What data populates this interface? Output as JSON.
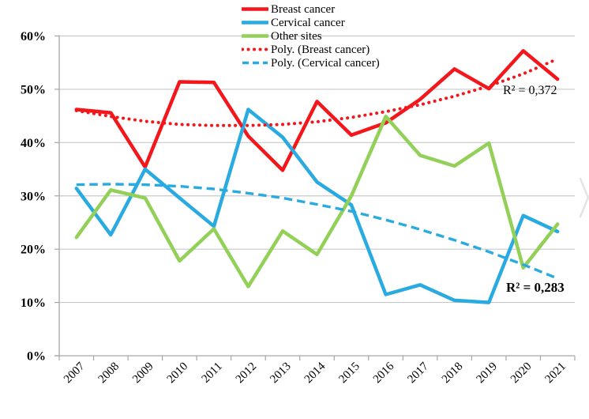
{
  "page": {
    "background": "#FFFFFF"
  },
  "chart_data": {
    "type": "line",
    "title": "",
    "x_categories": [
      "2007",
      "2008",
      "2009",
      "2010",
      "2011",
      "2012",
      "2013",
      "2014",
      "2015",
      "2016",
      "2017",
      "2018",
      "2019",
      "2020",
      "2021"
    ],
    "y_axis": {
      "min": 0,
      "max": 60,
      "step": 10,
      "format": "percent",
      "labels": [
        "0%",
        "10%",
        "20%",
        "30%",
        "40%",
        "50%",
        "60%"
      ]
    },
    "x_axis": {
      "label_rotation_deg": -45
    },
    "grid": {
      "horizontal": true,
      "vertical": false
    },
    "legend_position": "top-center",
    "series": [
      {
        "name": "Breast cancer",
        "color": "#F3161B",
        "line_style": "solid",
        "trendline": false,
        "values": [
          46.2,
          45.6,
          35.4,
          51.4,
          51.3,
          41.2,
          34.8,
          47.7,
          41.4,
          43.7,
          48.1,
          53.8,
          50.1,
          57.2,
          51.9
        ]
      },
      {
        "name": "Cervical cancer",
        "color": "#29ABE2",
        "line_style": "solid",
        "trendline": false,
        "values": [
          31.4,
          22.7,
          35.0,
          29.6,
          24.3,
          46.2,
          41.0,
          32.6,
          28.3,
          11.5,
          13.3,
          10.4,
          10.0,
          26.3,
          23.3
        ]
      },
      {
        "name": "Other sites",
        "color": "#92D058",
        "line_style": "solid",
        "trendline": false,
        "values": [
          22.2,
          31.1,
          29.6,
          17.8,
          23.8,
          13.0,
          23.4,
          19.0,
          30.0,
          44.9,
          37.6,
          35.6,
          39.9,
          16.5,
          24.7
        ]
      },
      {
        "name": "Poly. (Breast cancer)",
        "color": "#F3161B",
        "line_style": "dotted",
        "trendline": true,
        "values": [
          46.0,
          44.9,
          44.0,
          43.4,
          43.2,
          43.2,
          43.4,
          43.9,
          44.7,
          45.8,
          47.1,
          48.7,
          50.6,
          52.9,
          55.7
        ]
      },
      {
        "name": "Poly. (Cervical cancer)",
        "color": "#29ABE2",
        "line_style": "dashed",
        "trendline": true,
        "values": [
          32.1,
          32.2,
          32.1,
          31.8,
          31.3,
          30.5,
          29.6,
          28.4,
          27.1,
          25.5,
          23.7,
          21.7,
          19.5,
          17.1,
          14.5
        ]
      }
    ],
    "annotations": {
      "r2_breast": "R² = 0,372",
      "r2_cervical": "R² = 0,283"
    }
  }
}
